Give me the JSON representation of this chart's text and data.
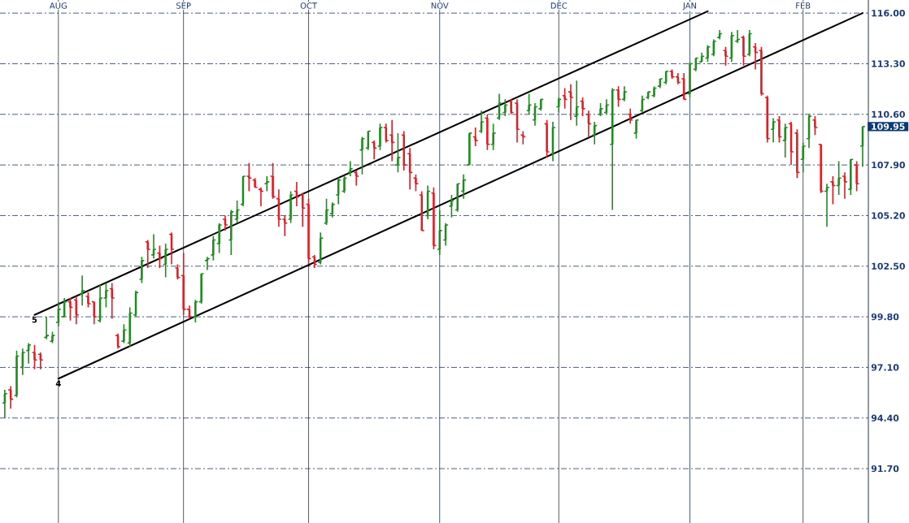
{
  "chart_data": {
    "type": "candlestick",
    "categories": [
      null,
      null,
      null,
      null,
      null,
      null,
      null,
      null,
      null,
      "AUG",
      null,
      null,
      null,
      null,
      null,
      null,
      null,
      null,
      null,
      null,
      null,
      null,
      null,
      null,
      null,
      null,
      null,
      null,
      null,
      null,
      "SEP",
      null,
      null,
      null,
      null,
      null,
      null,
      null,
      null,
      null,
      null,
      null,
      null,
      null,
      null,
      null,
      null,
      null,
      null,
      null,
      null,
      "OCT",
      null,
      null,
      null,
      null,
      null,
      null,
      null,
      null,
      null,
      null,
      null,
      null,
      null,
      null,
      null,
      null,
      null,
      null,
      null,
      null,
      null,
      "NOV",
      null,
      null,
      null,
      null,
      null,
      null,
      null,
      null,
      null,
      null,
      null,
      null,
      null,
      null,
      null,
      null,
      null,
      null,
      null,
      "DEC",
      null,
      null,
      null,
      null,
      null,
      null,
      null,
      null,
      null,
      null,
      null,
      null,
      null,
      null,
      null,
      null,
      null,
      null,
      null,
      null,
      null,
      "JAN",
      null,
      null,
      null,
      null,
      null,
      null,
      null,
      null,
      null,
      null,
      null,
      null,
      null,
      null,
      null,
      null,
      null,
      null,
      "FEB",
      null,
      null,
      null,
      null,
      null,
      null,
      null,
      null,
      null,
      null
    ],
    "ohlc": [
      [
        95.2,
        95.9,
        94.4,
        95.7
      ],
      [
        95.9,
        96.1,
        94.9,
        95.4
      ],
      [
        95.6,
        98.0,
        95.5,
        97.7
      ],
      [
        97.1,
        98.1,
        96.7,
        97.9
      ],
      [
        98.0,
        98.4,
        97.3,
        98.3
      ],
      [
        97.9,
        98.3,
        97.0,
        97.5
      ],
      [
        97.8,
        97.9,
        97.0,
        97.5
      ],
      [
        98.7,
        99.8,
        98.6,
        98.8
      ],
      [
        98.5,
        99.0,
        98.4,
        98.8
      ],
      [
        99.5,
        100.6,
        99.3,
        100.2
      ],
      [
        99.8,
        100.8,
        99.8,
        100.6
      ],
      [
        100.6,
        100.8,
        99.6,
        100.3
      ],
      [
        100.7,
        100.9,
        99.4,
        99.9
      ],
      [
        101.0,
        102.0,
        100.4,
        101.2
      ],
      [
        100.9,
        101.1,
        100.3,
        100.5
      ],
      [
        100.6,
        100.6,
        99.4,
        99.8
      ],
      [
        99.6,
        101.5,
        99.5,
        100.8
      ],
      [
        100.8,
        101.6,
        100.3,
        101.2
      ],
      [
        101.3,
        101.6,
        99.7,
        100.8
      ],
      [
        98.8,
        98.9,
        98.1,
        98.2
      ],
      [
        98.5,
        99.4,
        98.4,
        99.1
      ],
      [
        98.4,
        100.3,
        98.2,
        100.0
      ],
      [
        99.9,
        101.2,
        99.8,
        101.1
      ],
      [
        101.8,
        103.0,
        101.6,
        102.8
      ],
      [
        103.8,
        103.9,
        102.4,
        103.4
      ],
      [
        103.1,
        104.2,
        102.9,
        103.4
      ],
      [
        103.2,
        103.6,
        102.4,
        102.9
      ],
      [
        102.6,
        103.7,
        101.9,
        103.4
      ],
      [
        104.2,
        104.3,
        102.6,
        103.4
      ],
      [
        102.4,
        102.6,
        101.8,
        101.9
      ],
      [
        102.0,
        103.2,
        99.9,
        100.2
      ],
      [
        100.2,
        100.4,
        99.7,
        99.8
      ],
      [
        99.8,
        100.7,
        99.5,
        100.6
      ],
      [
        100.6,
        102.1,
        100.5,
        102.1
      ],
      [
        102.8,
        103.0,
        102.3,
        102.9
      ],
      [
        103.1,
        104.1,
        102.8,
        103.9
      ],
      [
        103.7,
        104.8,
        103.2,
        104.7
      ],
      [
        105.0,
        105.2,
        104.4,
        104.7
      ],
      [
        103.9,
        105.5,
        103.1,
        105.4
      ],
      [
        105.0,
        106.0,
        104.8,
        105.5
      ],
      [
        105.8,
        107.3,
        105.7,
        107.3
      ],
      [
        107.3,
        108.0,
        106.5,
        107.2
      ],
      [
        107.1,
        107.2,
        106.7,
        106.7
      ],
      [
        106.6,
        106.7,
        105.7,
        106.5
      ],
      [
        106.9,
        107.3,
        106.5,
        107.0
      ],
      [
        107.3,
        108.0,
        106.1,
        106.2
      ],
      [
        106.1,
        106.6,
        104.6,
        105.0
      ],
      [
        105.0,
        105.2,
        104.1,
        104.8
      ],
      [
        105.0,
        106.5,
        104.8,
        106.3
      ],
      [
        106.5,
        107.0,
        105.7,
        106.2
      ],
      [
        106.3,
        106.4,
        104.6,
        105.6
      ],
      [
        105.8,
        106.1,
        102.6,
        102.9
      ],
      [
        103.0,
        103.1,
        102.4,
        102.6
      ],
      [
        102.7,
        104.3,
        102.6,
        104.0
      ],
      [
        104.8,
        106.1,
        104.7,
        105.5
      ],
      [
        105.3,
        105.9,
        105.1,
        105.8
      ],
      [
        106.3,
        107.2,
        105.8,
        107.1
      ],
      [
        106.5,
        107.3,
        106.4,
        107.2
      ],
      [
        107.5,
        108.1,
        107.3,
        107.7
      ],
      [
        107.5,
        107.6,
        106.8,
        107.3
      ],
      [
        108.7,
        109.4,
        107.4,
        109.3
      ],
      [
        108.8,
        109.7,
        108.7,
        109.7
      ],
      [
        109.1,
        109.2,
        108.2,
        108.8
      ],
      [
        108.9,
        110.1,
        108.7,
        109.9
      ],
      [
        109.9,
        110.1,
        109.1,
        109.2
      ],
      [
        109.5,
        110.3,
        108.1,
        109.1
      ],
      [
        107.9,
        109.6,
        107.5,
        108.3
      ],
      [
        109.5,
        109.7,
        107.6,
        107.9
      ],
      [
        108.5,
        108.8,
        106.6,
        107.5
      ],
      [
        107.2,
        107.4,
        106.5,
        106.9
      ],
      [
        106.3,
        106.5,
        104.4,
        104.4
      ],
      [
        105.2,
        106.8,
        105.0,
        106.5
      ],
      [
        106.4,
        106.7,
        103.4,
        103.6
      ],
      [
        103.4,
        105.5,
        103.1,
        104.4
      ],
      [
        103.9,
        104.8,
        103.6,
        104.7
      ],
      [
        105.7,
        106.3,
        105.1,
        106.0
      ],
      [
        105.5,
        106.9,
        105.4,
        106.9
      ],
      [
        106.5,
        107.4,
        106.1,
        107.1
      ],
      [
        107.9,
        109.6,
        107.9,
        109.6
      ],
      [
        109.4,
        109.9,
        108.9,
        109.2
      ],
      [
        109.7,
        110.8,
        109.6,
        110.2
      ],
      [
        110.4,
        110.6,
        108.7,
        109.0
      ],
      [
        109.0,
        110.1,
        108.7,
        109.6
      ],
      [
        110.4,
        111.7,
        110.3,
        111.2
      ],
      [
        110.7,
        111.4,
        110.5,
        111.1
      ],
      [
        111.3,
        111.4,
        110.6,
        110.7
      ],
      [
        111.2,
        111.4,
        109.1,
        109.8
      ],
      [
        109.5,
        109.7,
        109.0,
        109.4
      ],
      [
        110.8,
        111.7,
        110.6,
        111.1
      ],
      [
        110.3,
        111.2,
        110.0,
        111.0
      ],
      [
        110.9,
        111.4,
        110.8,
        111.4
      ],
      [
        110.1,
        110.3,
        108.3,
        108.6
      ],
      [
        108.5,
        110.2,
        108.1,
        109.9
      ],
      [
        111.0,
        111.5,
        110.7,
        111.4
      ],
      [
        111.6,
        112.0,
        110.9,
        111.4
      ],
      [
        111.8,
        112.2,
        110.3,
        111.5
      ],
      [
        110.5,
        112.4,
        110.0,
        111.0
      ],
      [
        111.3,
        111.5,
        110.5,
        110.9
      ],
      [
        110.6,
        110.8,
        109.4,
        110.1
      ],
      [
        109.5,
        110.2,
        109.0,
        110.0
      ],
      [
        110.6,
        111.2,
        110.5,
        110.9
      ],
      [
        110.7,
        111.4,
        110.6,
        111.1
      ],
      [
        109.0,
        112.0,
        105.5,
        111.9
      ],
      [
        111.9,
        112.1,
        111.0,
        111.4
      ],
      [
        111.4,
        112.1,
        111.3,
        111.8
      ],
      [
        110.6,
        110.9,
        110.1,
        110.3
      ],
      [
        109.6,
        110.3,
        109.3,
        110.3
      ],
      [
        110.8,
        111.6,
        110.7,
        111.4
      ],
      [
        111.5,
        111.8,
        111.4,
        111.8
      ],
      [
        111.6,
        112.1,
        111.5,
        112.0
      ],
      [
        112.1,
        112.5,
        112.0,
        112.5
      ],
      [
        112.3,
        112.9,
        112.2,
        112.9
      ],
      [
        112.9,
        113.0,
        112.5,
        112.6
      ],
      [
        112.6,
        112.8,
        112.2,
        112.3
      ],
      [
        112.5,
        112.8,
        111.4,
        111.4
      ],
      [
        111.7,
        113.4,
        111.5,
        113.3
      ],
      [
        113.0,
        113.6,
        112.9,
        113.6
      ],
      [
        113.4,
        113.9,
        113.4,
        113.7
      ],
      [
        113.6,
        114.3,
        113.4,
        114.2
      ],
      [
        113.8,
        114.6,
        113.7,
        114.5
      ],
      [
        114.7,
        115.1,
        114.6,
        114.9
      ],
      [
        114.0,
        114.2,
        113.2,
        113.7
      ],
      [
        113.6,
        115.0,
        113.4,
        114.8
      ],
      [
        114.5,
        115.1,
        114.4,
        114.6
      ],
      [
        114.7,
        114.8,
        113.2,
        113.7
      ],
      [
        113.8,
        115.1,
        113.7,
        114.9
      ],
      [
        114.2,
        114.4,
        113.0,
        113.9
      ],
      [
        114.0,
        114.2,
        111.6,
        111.7
      ],
      [
        111.5,
        111.6,
        109.1,
        109.3
      ],
      [
        109.8,
        110.4,
        109.1,
        110.2
      ],
      [
        110.3,
        110.5,
        109.1,
        109.4
      ],
      [
        109.2,
        110.1,
        108.3,
        109.9
      ],
      [
        110.1,
        110.2,
        107.9,
        108.6
      ],
      [
        109.6,
        109.8,
        107.2,
        107.5
      ],
      [
        108.2,
        109.1,
        107.5,
        108.9
      ],
      [
        109.3,
        110.6,
        108.8,
        110.5
      ],
      [
        110.3,
        110.5,
        109.5,
        109.9
      ],
      [
        109.0,
        109.0,
        106.4,
        106.5
      ],
      [
        106.5,
        106.9,
        104.6,
        106.7
      ],
      [
        107.0,
        107.3,
        105.8,
        106.8
      ],
      [
        106.8,
        108.1,
        106.3,
        107.2
      ],
      [
        107.3,
        107.5,
        106.1,
        107.0
      ],
      [
        106.6,
        108.2,
        106.3,
        108.2
      ],
      [
        107.9,
        108.1,
        106.5,
        106.9
      ],
      [
        108.9,
        109.95,
        107.8,
        109.95
      ]
    ],
    "value_labels": [
      null,
      null,
      null,
      null,
      null,
      null,
      null,
      null,
      null,
      null,
      null,
      null,
      null,
      null,
      null,
      null,
      null,
      null,
      null,
      null,
      null,
      null,
      null,
      null,
      null,
      null,
      null,
      null,
      null,
      null,
      null,
      null,
      null,
      null,
      null,
      null,
      null,
      null,
      null,
      null,
      null,
      null,
      null,
      null,
      null,
      null,
      null,
      null,
      null,
      null,
      null,
      null,
      null,
      null,
      null,
      null,
      null,
      null,
      null,
      null,
      null,
      null,
      null,
      null,
      null,
      null,
      null,
      null,
      null,
      null,
      null,
      null,
      null,
      null,
      null,
      null,
      null,
      null,
      null,
      null,
      null,
      null,
      null,
      null,
      null,
      null,
      null,
      null,
      null,
      null,
      null,
      null,
      null,
      null,
      null,
      null,
      null,
      null,
      null,
      null,
      null,
      null,
      null,
      null,
      null,
      null,
      null,
      null,
      null,
      null,
      null,
      null,
      null,
      null,
      null,
      null,
      null,
      null,
      null,
      null,
      null,
      null,
      null,
      null,
      null,
      null,
      null,
      null,
      null,
      null,
      null,
      null,
      null,
      null,
      null,
      null,
      null,
      null,
      null,
      null,
      null,
      null,
      null,
      null,
      "109.95"
    ],
    "colors": [
      "#1e8c1e",
      "#e31b23",
      "#1e8c1e",
      "#1e8c1e",
      "#1e8c1e",
      "#e31b23",
      "#e31b23",
      "#1e8c1e",
      "#1e8c1e",
      "#1e8c1e",
      "#1e8c1e",
      "#e31b23",
      "#e31b23",
      "#1e8c1e",
      "#e31b23",
      "#e31b23",
      "#1e8c1e",
      "#1e8c1e",
      "#e31b23",
      "#e31b23",
      "#1e8c1e",
      "#1e8c1e",
      "#1e8c1e",
      "#1e8c1e",
      "#e31b23",
      "#1e8c1e",
      "#e31b23",
      "#1e8c1e",
      "#e31b23",
      "#e31b23",
      "#e31b23",
      "#e31b23",
      "#1e8c1e",
      "#1e8c1e",
      "#1e8c1e",
      "#1e8c1e",
      "#1e8c1e",
      "#e31b23",
      "#1e8c1e",
      "#1e8c1e",
      "#1e8c1e",
      "#e31b23",
      "#e31b23",
      "#e31b23",
      "#1e8c1e",
      "#e31b23",
      "#e31b23",
      "#e31b23",
      "#1e8c1e",
      "#e31b23",
      "#e31b23",
      "#e31b23",
      "#e31b23",
      "#1e8c1e",
      "#1e8c1e",
      "#1e8c1e",
      "#1e8c1e",
      "#1e8c1e",
      "#1e8c1e",
      "#e31b23",
      "#1e8c1e",
      "#1e8c1e",
      "#e31b23",
      "#1e8c1e",
      "#e31b23",
      "#e31b23",
      "#1e8c1e",
      "#e31b23",
      "#e31b23",
      "#e31b23",
      "#e31b23",
      "#1e8c1e",
      "#e31b23",
      "#1e8c1e",
      "#1e8c1e",
      "#1e8c1e",
      "#1e8c1e",
      "#1e8c1e",
      "#1e8c1e",
      "#e31b23",
      "#1e8c1e",
      "#e31b23",
      "#1e8c1e",
      "#1e8c1e",
      "#1e8c1e",
      "#e31b23",
      "#e31b23",
      "#e31b23",
      "#1e8c1e",
      "#1e8c1e",
      "#1e8c1e",
      "#e31b23",
      "#1e8c1e",
      "#1e8c1e",
      "#e31b23",
      "#e31b23",
      "#1e8c1e",
      "#e31b23",
      "#e31b23",
      "#1e8c1e",
      "#1e8c1e",
      "#1e8c1e",
      "#1e8c1e",
      "#e31b23",
      "#1e8c1e",
      "#e31b23",
      "#1e8c1e",
      "#1e8c1e",
      "#1e8c1e",
      "#1e8c1e",
      "#1e8c1e",
      "#1e8c1e",
      "#e31b23",
      "#e31b23",
      "#e31b23",
      "#1e8c1e",
      "#1e8c1e",
      "#1e8c1e",
      "#1e8c1e",
      "#1e8c1e",
      "#1e8c1e",
      "#e31b23",
      "#1e8c1e",
      "#1e8c1e",
      "#e31b23",
      "#1e8c1e",
      "#e31b23",
      "#e31b23",
      "#e31b23",
      "#1e8c1e",
      "#e31b23",
      "#1e8c1e",
      "#e31b23",
      "#e31b23",
      "#1e8c1e",
      "#1e8c1e",
      "#e31b23",
      "#e31b23",
      "#1e8c1e",
      "#e31b23",
      "#1e8c1e",
      "#e31b23",
      "#1e8c1e",
      "#e31b23",
      "#1e8c1e"
    ],
    "series": [
      {
        "type": "line",
        "name": "5",
        "color": "#000000",
        "values": [
          null,
          null,
          null,
          null,
          null,
          99.9,
          null,
          null,
          null,
          null,
          null,
          null,
          null,
          null,
          null,
          null,
          null,
          null,
          null,
          null,
          null,
          null,
          null,
          null,
          null,
          null,
          null,
          null,
          null,
          null,
          null,
          null,
          null,
          null,
          null,
          null,
          null,
          null,
          null,
          null,
          null,
          null,
          null,
          null,
          null,
          null,
          null,
          null,
          null,
          null,
          null,
          null,
          null,
          null,
          null,
          null,
          null,
          null,
          null,
          null,
          null,
          null,
          null,
          null,
          null,
          null,
          null,
          null,
          null,
          null,
          null,
          null,
          null,
          null,
          null,
          null,
          null,
          null,
          null,
          null,
          null,
          null,
          null,
          null,
          null,
          null,
          null,
          null,
          null,
          null,
          null,
          null,
          null,
          null,
          null,
          null,
          null,
          null,
          null,
          null,
          null,
          null,
          null,
          null,
          null,
          null,
          null,
          null,
          null,
          null,
          null,
          null,
          null,
          null,
          null,
          null,
          null,
          null,
          116.1,
          null,
          null,
          null,
          null,
          null,
          null,
          null,
          null,
          null,
          null,
          null,
          null,
          null,
          null,
          null,
          null,
          null,
          null,
          null,
          null,
          null,
          null,
          null,
          null,
          null,
          null
        ]
      },
      {
        "type": "line",
        "name": "4",
        "color": "#000000",
        "values": [
          null,
          null,
          null,
          null,
          null,
          null,
          null,
          null,
          null,
          96.5,
          null,
          null,
          null,
          null,
          null,
          null,
          null,
          null,
          null,
          null,
          null,
          null,
          null,
          null,
          null,
          null,
          null,
          null,
          null,
          null,
          null,
          null,
          null,
          null,
          null,
          null,
          null,
          null,
          null,
          null,
          null,
          null,
          null,
          null,
          null,
          null,
          null,
          null,
          null,
          null,
          null,
          null,
          null,
          null,
          null,
          null,
          null,
          null,
          null,
          null,
          null,
          null,
          null,
          null,
          null,
          null,
          null,
          null,
          null,
          null,
          null,
          null,
          null,
          null,
          null,
          null,
          null,
          null,
          null,
          null,
          null,
          null,
          null,
          null,
          null,
          null,
          null,
          null,
          null,
          null,
          null,
          null,
          null,
          null,
          null,
          null,
          null,
          null,
          null,
          null,
          null,
          null,
          null,
          null,
          null,
          null,
          null,
          null,
          null,
          null,
          null,
          null,
          null,
          null,
          null,
          null,
          null,
          null,
          null,
          null,
          null,
          null,
          null,
          null,
          null,
          null,
          null,
          null,
          null,
          null,
          null,
          null,
          null,
          null,
          null,
          null,
          null,
          null,
          null,
          null,
          null,
          null,
          null,
          null,
          116.0
        ]
      }
    ],
    "ylim": [
      88.8,
      116.7
    ],
    "yticks": [
      {
        "value": 91.7,
        "label": "91.70"
      },
      {
        "value": 94.4,
        "label": "94.40"
      },
      {
        "value": 97.1,
        "label": "97.10"
      },
      {
        "value": 99.8,
        "label": "99.80"
      },
      {
        "value": 102.5,
        "label": "102.50"
      },
      {
        "value": 105.2,
        "label": "105.20"
      },
      {
        "value": 107.9,
        "label": "107.90"
      },
      {
        "value": 110.6,
        "label": "110.60"
      },
      {
        "value": 113.3,
        "label": "113.30"
      },
      {
        "value": 116.0,
        "label": "116.00"
      }
    ],
    "grid": true
  }
}
